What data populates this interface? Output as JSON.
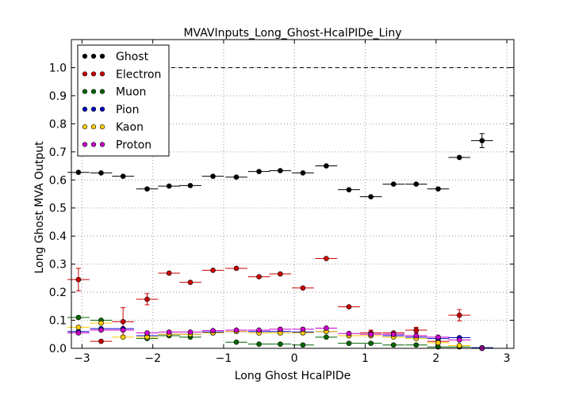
{
  "chart_data": {
    "type": "scatter",
    "title": "MVAVInputs_Long_Ghost-HcalPIDe_Liny",
    "xlabel": "Long Ghost HcalPIDe",
    "ylabel": "Long Ghost MVA Output",
    "xlim": [
      -3.15,
      3.1
    ],
    "ylim": [
      0.0,
      1.1
    ],
    "xticks": [
      -3,
      -2,
      -1,
      0,
      1,
      2,
      3
    ],
    "xtick_labels": [
      "−3",
      "−2",
      "−1",
      "0",
      "1",
      "2",
      "3"
    ],
    "yticks": [
      0.0,
      0.1,
      0.2,
      0.3,
      0.4,
      0.5,
      0.6,
      0.7,
      0.8,
      0.9,
      1.0
    ],
    "ytick_labels": [
      "0.0",
      "0.1",
      "0.2",
      "0.3",
      "0.4",
      "0.5",
      "0.6",
      "0.7",
      "0.8",
      "0.9",
      "1.0"
    ],
    "grid": true,
    "reference_line": 1.0,
    "legend_position": "top-left",
    "bin_half_width": 0.155,
    "series": [
      {
        "name": "Ghost",
        "color": "#000000",
        "x": [
          -3.05,
          -2.73,
          -2.42,
          -2.08,
          -1.77,
          -1.47,
          -1.15,
          -0.82,
          -0.5,
          -0.2,
          0.12,
          0.45,
          0.77,
          1.08,
          1.4,
          1.72,
          2.03,
          2.33,
          2.65
        ],
        "y": [
          0.627,
          0.625,
          0.613,
          0.568,
          0.578,
          0.58,
          0.613,
          0.61,
          0.63,
          0.633,
          0.625,
          0.65,
          0.565,
          0.54,
          0.585,
          0.585,
          0.568,
          0.68,
          0.74
        ],
        "yerr": [
          0.004,
          0.004,
          0.004,
          0.004,
          0.003,
          0.003,
          0.003,
          0.003,
          0.003,
          0.003,
          0.003,
          0.003,
          0.003,
          0.004,
          0.004,
          0.004,
          0.005,
          0.006,
          0.025
        ]
      },
      {
        "name": "Electron",
        "color": "#cc0000",
        "x": [
          -3.05,
          -2.73,
          -2.42,
          -2.08,
          -1.77,
          -1.47,
          -1.15,
          -0.82,
          -0.5,
          -0.2,
          0.12,
          0.45,
          0.77,
          1.08,
          1.4,
          1.72,
          2.03,
          2.33,
          2.65
        ],
        "y": [
          0.245,
          0.025,
          0.095,
          0.175,
          0.268,
          0.235,
          0.278,
          0.285,
          0.255,
          0.265,
          0.215,
          0.32,
          0.148,
          0.055,
          0.055,
          0.065,
          0.025,
          0.118,
          0.0
        ],
        "yerr": [
          0.04,
          0.008,
          0.05,
          0.02,
          0.008,
          0.006,
          0.006,
          0.005,
          0.005,
          0.005,
          0.005,
          0.005,
          0.006,
          0.01,
          0.008,
          0.01,
          0.01,
          0.02,
          0.0
        ]
      },
      {
        "name": "Muon",
        "color": "#006600",
        "x": [
          -3.05,
          -2.73,
          -2.42,
          -2.08,
          -1.77,
          -1.47,
          -1.15,
          -0.82,
          -0.5,
          -0.2,
          0.12,
          0.45,
          0.77,
          1.08,
          1.4,
          1.72,
          2.03,
          2.33,
          2.65
        ],
        "y": [
          0.11,
          0.1,
          0.065,
          0.035,
          0.045,
          0.04,
          0.055,
          0.022,
          0.015,
          0.015,
          0.012,
          0.04,
          0.018,
          0.018,
          0.012,
          0.012,
          0.005,
          0.005,
          0.002
        ],
        "yerr": [
          0.006,
          0.006,
          0.005,
          0.004,
          0.003,
          0.003,
          0.003,
          0.003,
          0.002,
          0.002,
          0.002,
          0.003,
          0.003,
          0.003,
          0.003,
          0.003,
          0.002,
          0.002,
          0.001
        ]
      },
      {
        "name": "Pion",
        "color": "#0000cc",
        "x": [
          -3.05,
          -2.73,
          -2.42,
          -2.08,
          -1.77,
          -1.47,
          -1.15,
          -0.82,
          -0.5,
          -0.2,
          0.12,
          0.45,
          0.77,
          1.08,
          1.4,
          1.72,
          2.03,
          2.33,
          2.65
        ],
        "y": [
          0.06,
          0.07,
          0.07,
          0.045,
          0.05,
          0.05,
          0.058,
          0.06,
          0.06,
          0.06,
          0.058,
          0.06,
          0.045,
          0.045,
          0.045,
          0.04,
          0.035,
          0.038,
          0.002
        ],
        "yerr": [
          0.004,
          0.004,
          0.004,
          0.003,
          0.002,
          0.002,
          0.002,
          0.002,
          0.002,
          0.002,
          0.002,
          0.002,
          0.002,
          0.003,
          0.003,
          0.003,
          0.004,
          0.005,
          0.001
        ]
      },
      {
        "name": "Kaon",
        "color": "#ffcc00",
        "x": [
          -3.05,
          -2.73,
          -2.42,
          -2.08,
          -1.77,
          -1.47,
          -1.15,
          -0.82,
          -0.5,
          -0.2,
          0.12,
          0.45,
          0.77,
          1.08,
          1.4,
          1.72,
          2.03,
          2.33,
          2.65
        ],
        "y": [
          0.075,
          0.09,
          0.04,
          0.04,
          0.05,
          0.05,
          0.055,
          0.06,
          0.055,
          0.055,
          0.055,
          0.06,
          0.045,
          0.045,
          0.04,
          0.035,
          0.02,
          0.01,
          0.0
        ],
        "yerr": [
          0.006,
          0.006,
          0.005,
          0.004,
          0.003,
          0.003,
          0.003,
          0.003,
          0.003,
          0.003,
          0.003,
          0.003,
          0.003,
          0.004,
          0.004,
          0.004,
          0.004,
          0.004,
          0.0
        ]
      },
      {
        "name": "Proton",
        "color": "#cc00cc",
        "x": [
          -3.05,
          -2.73,
          -2.42,
          -2.08,
          -1.77,
          -1.47,
          -1.15,
          -0.82,
          -0.5,
          -0.2,
          0.12,
          0.45,
          0.77,
          1.08,
          1.4,
          1.72,
          2.03,
          2.33,
          2.65
        ],
        "y": [
          0.055,
          0.065,
          0.065,
          0.055,
          0.058,
          0.058,
          0.063,
          0.065,
          0.065,
          0.068,
          0.068,
          0.072,
          0.053,
          0.05,
          0.05,
          0.045,
          0.04,
          0.03,
          0.0
        ],
        "yerr": [
          0.005,
          0.005,
          0.005,
          0.004,
          0.003,
          0.003,
          0.003,
          0.003,
          0.003,
          0.003,
          0.003,
          0.003,
          0.003,
          0.004,
          0.004,
          0.004,
          0.004,
          0.005,
          0.0
        ]
      }
    ]
  }
}
